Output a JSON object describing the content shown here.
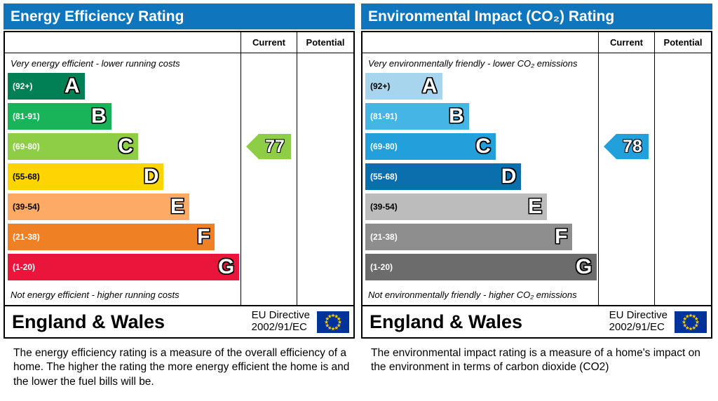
{
  "theme": {
    "header_color": "#0f76bd",
    "border_color": "#000000",
    "flag_background": "#003399",
    "flag_stars": "#ffcc00"
  },
  "chart_data": [
    {
      "type": "bar",
      "orientation": "horizontal",
      "title": "Energy Efficiency Rating",
      "categories": [
        "A",
        "B",
        "C",
        "D",
        "E",
        "F",
        "G"
      ],
      "band_ranges": [
        "92+",
        "81-91",
        "69-80",
        "55-68",
        "39-54",
        "21-38",
        "1-20"
      ],
      "band_colors": [
        "#008054",
        "#19b459",
        "#8dce46",
        "#ffd500",
        "#fcaa65",
        "#ef8023",
        "#e9153b"
      ],
      "band_widths_pct": [
        33,
        44.5,
        56,
        67,
        78,
        89,
        99.5
      ],
      "scale": [
        1,
        100
      ],
      "columns": [
        "Current",
        "Potential"
      ],
      "current": 77,
      "current_band": "C",
      "potential": null
    },
    {
      "type": "bar",
      "orientation": "horizontal",
      "title": "Environmental Impact (CO₂) Rating",
      "categories": [
        "A",
        "B",
        "C",
        "D",
        "E",
        "F",
        "G"
      ],
      "band_ranges": [
        "92+",
        "81-91",
        "69-80",
        "55-68",
        "39-54",
        "21-38",
        "1-20"
      ],
      "band_colors": [
        "#a8d5ee",
        "#45b5e6",
        "#21a0db",
        "#0c6fad",
        "#bcbcbc",
        "#8e8e8e",
        "#6c6c6c"
      ],
      "band_widths_pct": [
        33,
        44.5,
        56,
        67,
        78,
        89,
        99.5
      ],
      "scale": [
        1,
        100
      ],
      "columns": [
        "Current",
        "Potential"
      ],
      "current": 78,
      "current_band": "C",
      "potential": null
    }
  ],
  "panels": [
    {
      "title": "Energy Efficiency Rating",
      "col_current": "Current",
      "col_potential": "Potential",
      "top_caption": "Very energy efficient - lower running costs",
      "bottom_caption": "Not energy efficient - higher running costs",
      "bands": [
        {
          "range": "(92+)",
          "letter": "A",
          "color": "#008054",
          "label_color": "#ffffff",
          "width_pct": 33
        },
        {
          "range": "(81-91)",
          "letter": "B",
          "color": "#19b459",
          "label_color": "#ffffff",
          "width_pct": 44.5
        },
        {
          "range": "(69-80)",
          "letter": "C",
          "color": "#8dce46",
          "label_color": "#ffffff",
          "width_pct": 56
        },
        {
          "range": "(55-68)",
          "letter": "D",
          "color": "#ffd500",
          "label_color": "#000000",
          "width_pct": 67
        },
        {
          "range": "(39-54)",
          "letter": "E",
          "color": "#fcaa65",
          "label_color": "#000000",
          "width_pct": 78
        },
        {
          "range": "(21-38)",
          "letter": "F",
          "color": "#ef8023",
          "label_color": "#ffffff",
          "width_pct": 89
        },
        {
          "range": "(1-20)",
          "letter": "G",
          "color": "#e9153b",
          "label_color": "#ffffff",
          "width_pct": 99.5
        }
      ],
      "current": {
        "value": "77",
        "color": "#8dce46",
        "band_index": 2
      },
      "footer": {
        "region": "England & Wales",
        "directive_line1": "EU Directive",
        "directive_line2": "2002/91/EC"
      },
      "description": "The energy efficiency rating is a measure of the overall efficiency of a home.  The higher the rating the more energy efficient the home is and the lower the fuel bills will be."
    },
    {
      "title": "Environmental Impact (CO₂) Rating",
      "col_current": "Current",
      "col_potential": "Potential",
      "top_caption": "Very environmentally friendly - lower CO₂ emissions",
      "bottom_caption": "Not environmentally friendly - higher CO₂ emissions",
      "bands": [
        {
          "range": "(92+)",
          "letter": "A",
          "color": "#a8d5ee",
          "label_color": "#000000",
          "width_pct": 33
        },
        {
          "range": "(81-91)",
          "letter": "B",
          "color": "#45b5e6",
          "label_color": "#ffffff",
          "width_pct": 44.5
        },
        {
          "range": "(69-80)",
          "letter": "C",
          "color": "#21a0db",
          "label_color": "#ffffff",
          "width_pct": 56
        },
        {
          "range": "(55-68)",
          "letter": "D",
          "color": "#0c6fad",
          "label_color": "#ffffff",
          "width_pct": 67
        },
        {
          "range": "(39-54)",
          "letter": "E",
          "color": "#bcbcbc",
          "label_color": "#000000",
          "width_pct": 78
        },
        {
          "range": "(21-38)",
          "letter": "F",
          "color": "#8e8e8e",
          "label_color": "#ffffff",
          "width_pct": 89
        },
        {
          "range": "(1-20)",
          "letter": "G",
          "color": "#6c6c6c",
          "label_color": "#ffffff",
          "width_pct": 99.5
        }
      ],
      "current": {
        "value": "78",
        "color": "#21a0db",
        "band_index": 2
      },
      "footer": {
        "region": "England & Wales",
        "directive_line1": "EU Directive",
        "directive_line2": "2002/91/EC"
      },
      "description": "The environmental impact rating is a measure of a home's impact on the environment in terms of carbon dioxide (CO2)"
    }
  ]
}
